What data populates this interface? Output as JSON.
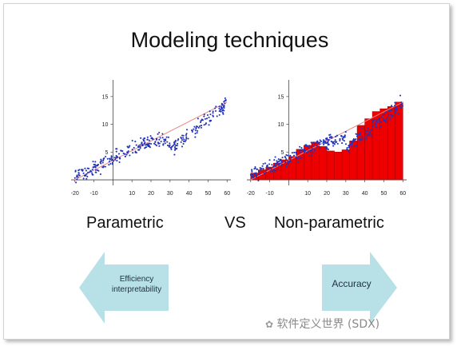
{
  "title": "Modeling techniques",
  "labels": {
    "left": "Parametric",
    "vs": "VS",
    "right": "Non-parametric"
  },
  "arrows": {
    "left": {
      "lines": [
        "Efficiency",
        "interpretability"
      ],
      "fill": "#b7e1e6"
    },
    "right": {
      "label": "Accuracy",
      "fill": "#b7e1e6"
    }
  },
  "watermark": "软件定义世界 (SDX)",
  "colors": {
    "points": "#2233bb",
    "fit_line": "#e88888",
    "bars": "#ee0000",
    "bar_edge": "#b00000"
  },
  "chart_data": [
    {
      "type": "scatter",
      "description_role": "parametric",
      "x_ticks": [
        -20,
        -10,
        10,
        20,
        30,
        40,
        50,
        60
      ],
      "y_ticks": [
        5,
        10,
        15
      ],
      "xlim": [
        -22,
        62
      ],
      "ylim": [
        -1,
        18
      ],
      "fit_line": {
        "x": [
          -20,
          60
        ],
        "y": [
          0,
          14
        ]
      }
    },
    {
      "type": "bar",
      "description_role": "non-parametric",
      "x_ticks": [
        -20,
        -10,
        10,
        20,
        30,
        40,
        50,
        60
      ],
      "y_ticks": [
        5,
        10,
        15
      ],
      "xlim": [
        -22,
        62
      ],
      "ylim": [
        -1,
        18
      ],
      "fit_line": {
        "x": [
          -20,
          60
        ],
        "y": [
          0,
          14
        ]
      },
      "bar_width": 4,
      "bars_x": [
        -18,
        -14,
        -10,
        -6,
        -2,
        2,
        6,
        10,
        14,
        18,
        22,
        26,
        30,
        34,
        38,
        42,
        46,
        50,
        54,
        58
      ],
      "bars_y": [
        1.2,
        1.8,
        2.3,
        3.0,
        3.6,
        4.2,
        5.5,
        6.2,
        6.8,
        6.0,
        5.2,
        5.0,
        5.4,
        7.0,
        9.8,
        11.0,
        12.3,
        12.8,
        13.2,
        14.0
      ]
    }
  ]
}
